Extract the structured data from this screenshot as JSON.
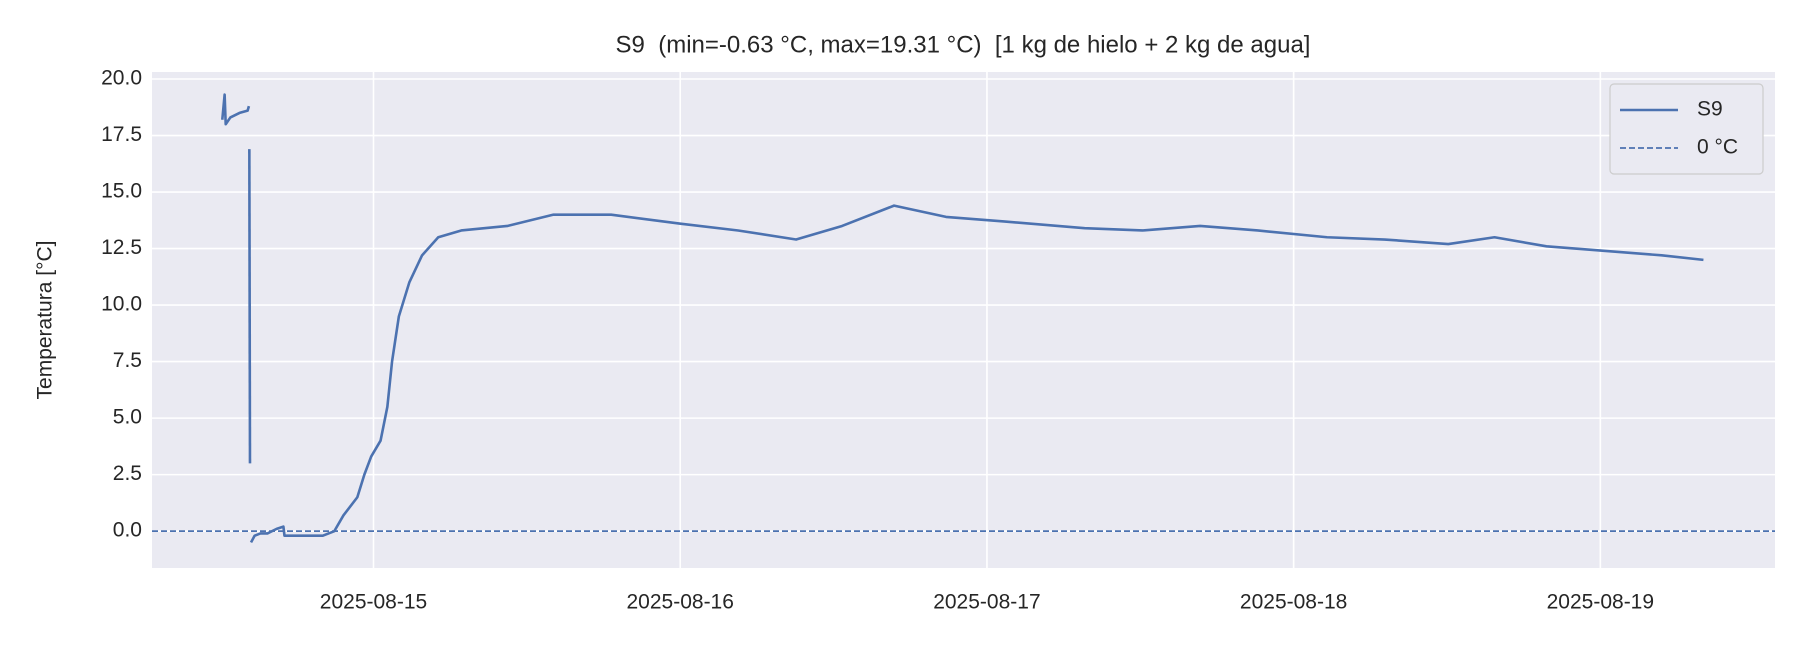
{
  "chart_data": {
    "type": "line",
    "title": "S9  (min=-0.63 °C, max=19.31 °C)  [1 kg de hielo + 2 kg de agua]",
    "ylabel": "Temperatura [°C]",
    "x": [
      "2025-08-14T12:10",
      "2025-08-14T12:21",
      "2025-08-14T12:26",
      "2025-08-14T12:48",
      "2025-08-14T13:31",
      "2025-08-14T14:09",
      "2025-08-14T14:15",
      "2025-08-14T14:16",
      "2025-08-14T14:17",
      "2025-08-14T14:20",
      "2025-08-14T14:22",
      "2025-08-14T14:25",
      "2025-08-14T14:42",
      "2025-08-14T15:09",
      "2025-08-14T15:42",
      "2025-08-14T16:25",
      "2025-08-14T16:57",
      "2025-08-14T17:02",
      "2025-08-14T18:13",
      "2025-08-14T20:02",
      "2025-08-14T20:56",
      "2025-08-14T21:39",
      "2025-08-14T22:44",
      "2025-08-14T23:17",
      "2025-08-14T23:49",
      "2025-08-15T00:33",
      "2025-08-15T01:05",
      "2025-08-15T01:27",
      "2025-08-15T01:59",
      "2025-08-15T02:48",
      "2025-08-15T03:48",
      "2025-08-15T05:04",
      "2025-08-15T06:52",
      "2025-08-15T10:29",
      "2025-08-15T14:05",
      "2025-08-15T18:36",
      "2025-08-16T00:01",
      "2025-08-16T04:32",
      "2025-08-16T09:04",
      "2025-08-16T12:40",
      "2025-08-16T16:44",
      "2025-08-16T20:48",
      "2025-08-17T01:19",
      "2025-08-17T07:39",
      "2025-08-17T12:10",
      "2025-08-17T16:41",
      "2025-08-17T21:11",
      "2025-08-18T02:37",
      "2025-08-18T07:08",
      "2025-08-18T12:06",
      "2025-08-18T15:43",
      "2025-08-18T19:47",
      "2025-08-19T00:17",
      "2025-08-19T04:48",
      "2025-08-19T08:04"
    ],
    "series": [
      {
        "name": "S9",
        "color": "#4c72b0",
        "values": [
          18.2,
          19.31,
          18.0,
          18.3,
          18.5,
          18.6,
          18.8,
          null,
          16.9,
          3.0,
          null,
          -0.5,
          -0.2,
          -0.1,
          -0.1,
          0.1,
          0.2,
          -0.2,
          -0.2,
          -0.2,
          0.0,
          0.7,
          1.5,
          2.5,
          3.3,
          4.0,
          5.5,
          7.5,
          9.5,
          11.0,
          12.2,
          13.0,
          13.3,
          13.5,
          14.0,
          14.0,
          13.6,
          13.3,
          12.9,
          13.5,
          14.4,
          13.9,
          13.7,
          13.4,
          13.3,
          13.5,
          13.3,
          13.0,
          12.9,
          12.7,
          13.0,
          12.6,
          12.4,
          12.2,
          12.0
        ]
      }
    ],
    "reference_lines": [
      {
        "name": "0 °C",
        "value": 0,
        "color": "#4c72b0",
        "style": "dashed"
      }
    ],
    "xlim": [
      "2025-08-14T06:40",
      "2025-08-19T13:40"
    ],
    "xticks": [
      "2025-08-15",
      "2025-08-16",
      "2025-08-17",
      "2025-08-18",
      "2025-08-19"
    ],
    "ylim": [
      -1.63,
      20.31
    ],
    "yticks": [
      {
        "value": 0,
        "label": "0.0"
      },
      {
        "value": 2.5,
        "label": "2.5"
      },
      {
        "value": 5,
        "label": "5.0"
      },
      {
        "value": 7.5,
        "label": "7.5"
      },
      {
        "value": 10,
        "label": "10.0"
      },
      {
        "value": 12.5,
        "label": "12.5"
      },
      {
        "value": 15,
        "label": "15.0"
      },
      {
        "value": 17.5,
        "label": "17.5"
      },
      {
        "value": 20,
        "label": "20.0"
      }
    ],
    "grid": true,
    "legend": "upper right"
  }
}
